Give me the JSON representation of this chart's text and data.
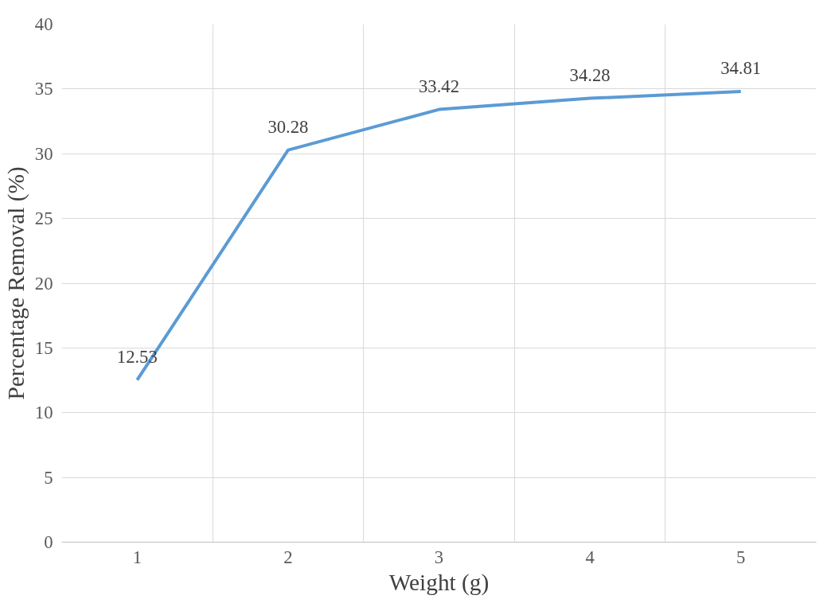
{
  "chart_data": {
    "type": "line",
    "xlabel": "Weight (g)",
    "ylabel": "Percentage Removal (%)",
    "categories": [
      "1",
      "2",
      "3",
      "4",
      "5"
    ],
    "series": [
      {
        "color": "#5b9bd5",
        "values": [
          12.53,
          30.28,
          33.42,
          34.28,
          34.81
        ]
      }
    ],
    "ylim": [
      0,
      40
    ],
    "yticks": [
      0,
      5,
      10,
      15,
      20,
      25,
      30,
      35,
      40
    ],
    "grid": true,
    "data_labels": true,
    "marker": "none",
    "line_style": "solid"
  }
}
